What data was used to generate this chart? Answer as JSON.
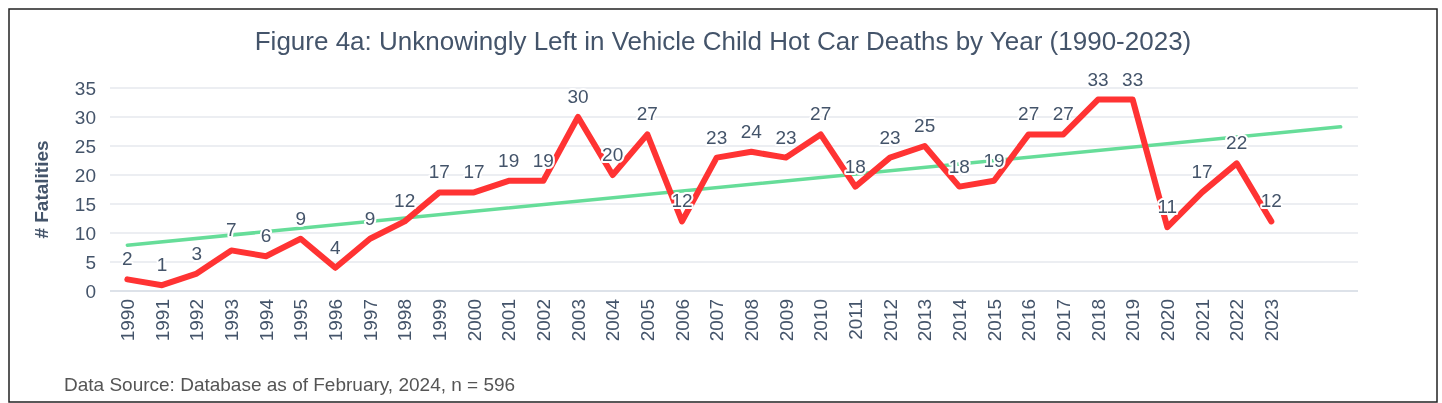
{
  "chart_data": {
    "type": "line",
    "title": "Figure 4a: Unknowingly Left in Vehicle Child Hot Car Deaths by Year (1990-2023)",
    "ylabel": "# Fatalities",
    "xlim": [
      1989.5,
      2025.5
    ],
    "xticks": [
      1990,
      1991,
      1992,
      1993,
      1994,
      1995,
      1996,
      1997,
      1998,
      1999,
      2000,
      2001,
      2002,
      2003,
      2004,
      2005,
      2006,
      2007,
      2008,
      2009,
      2010,
      2011,
      2012,
      2013,
      2014,
      2015,
      2016,
      2017,
      2018,
      2019,
      2020,
      2021,
      2022,
      2023
    ],
    "ylim": [
      0,
      35
    ],
    "yticks": [
      0,
      5,
      10,
      15,
      20,
      25,
      30,
      35
    ],
    "grid": "y",
    "marker": "none",
    "line_style": "solid",
    "series": [
      {
        "color": "#ff3333",
        "data_labels": true,
        "x": [
          1990,
          1991,
          1992,
          1993,
          1994,
          1995,
          1996,
          1997,
          1998,
          1999,
          2000,
          2001,
          2002,
          2003,
          2004,
          2005,
          2006,
          2007,
          2008,
          2009,
          2010,
          2011,
          2012,
          2013,
          2014,
          2015,
          2016,
          2017,
          2018,
          2019,
          2020,
          2021,
          2022,
          2023
        ],
        "values": [
          2,
          1,
          3,
          7,
          6,
          9,
          4,
          9,
          12,
          17,
          17,
          19,
          19,
          30,
          20,
          27,
          12,
          23,
          24,
          23,
          27,
          18,
          23,
          25,
          18,
          19,
          27,
          27,
          33,
          33,
          11,
          17,
          22,
          12
        ]
      },
      {
        "color": "#66dd99",
        "x": [
          1990,
          2025
        ],
        "values": [
          7.9,
          28.3
        ]
      }
    ],
    "annotations": [
      "Data Source: Database as of February, 2024,  n = 596"
    ]
  }
}
